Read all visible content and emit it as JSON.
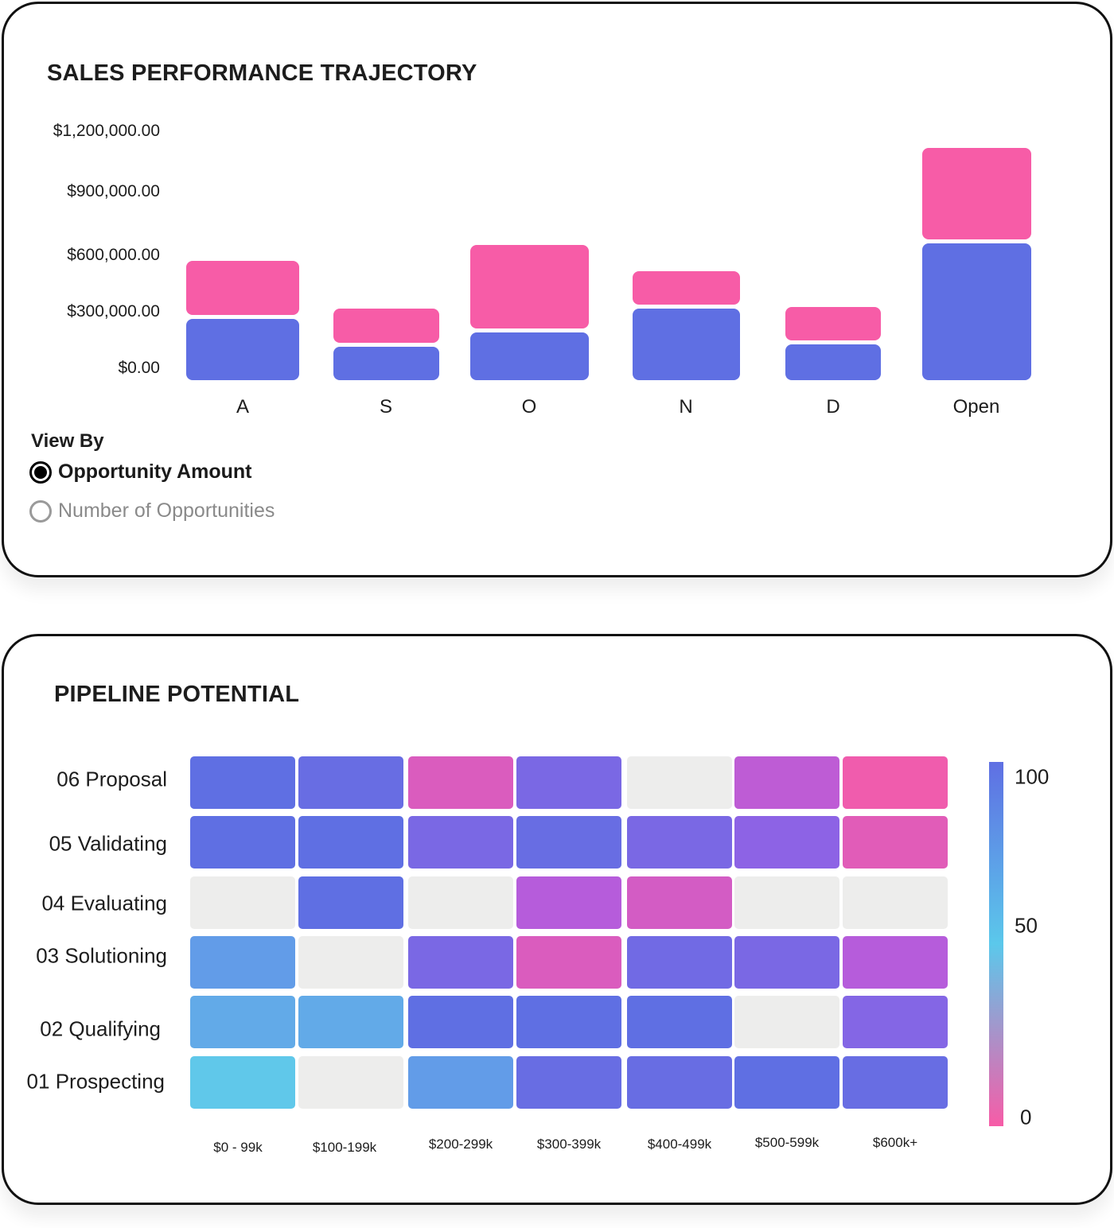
{
  "chart_data": [
    {
      "type": "bar",
      "stacked": true,
      "title": "SALES PERFORMANCE TRAJECTORY",
      "categories": [
        "A",
        "S",
        "O",
        "N",
        "D",
        "Open"
      ],
      "yticks": [
        "$0.00",
        "$300,000.00",
        "$600,000.00",
        "$900,000.00",
        "$1,200,000.00"
      ],
      "ylim": [
        0,
        1200000
      ],
      "series": [
        {
          "color": "#5F6FE3",
          "values": [
            330000,
            190000,
            260000,
            380000,
            200000,
            710000
          ]
        },
        {
          "color": "#F75CA7",
          "values": [
            290000,
            190000,
            440000,
            190000,
            190000,
            480000
          ]
        }
      ],
      "legend": "none",
      "grid": false
    },
    {
      "type": "heatmap",
      "title": "PIPELINE POTENTIAL",
      "rows": [
        "06 Proposal",
        "05 Validating",
        "04 Evaluating",
        "03 Solutioning",
        "02 Qualifying",
        "01 Prospecting"
      ],
      "columns": [
        "$0 - 99k",
        "$100-199k",
        "$200-299k",
        "$300-399k",
        "$400-499k",
        "$500-599k",
        "$600k+"
      ],
      "values": [
        [
          100,
          90,
          20,
          80,
          null,
          40,
          5
        ],
        [
          95,
          95,
          80,
          90,
          80,
          70,
          15
        ],
        [
          null,
          95,
          null,
          45,
          25,
          null,
          null
        ],
        [
          90,
          null,
          80,
          20,
          85,
          80,
          45
        ],
        [
          75,
          70,
          100,
          95,
          100,
          null,
          75
        ],
        [
          60,
          null,
          80,
          90,
          90,
          100,
          90
        ]
      ],
      "empty_color": "#EDEDEC",
      "color_scale": {
        "min": 0,
        "max": 100,
        "ticks": [
          "0",
          "50",
          "100"
        ],
        "stops": [
          "#F75CA7",
          "#5BC8EB",
          "#5F6FE3"
        ]
      }
    }
  ],
  "controls": {
    "view_by_label": "View By",
    "options": [
      "Opportunity Amount",
      "Number of Opportunities"
    ],
    "selected": "Opportunity Amount"
  }
}
